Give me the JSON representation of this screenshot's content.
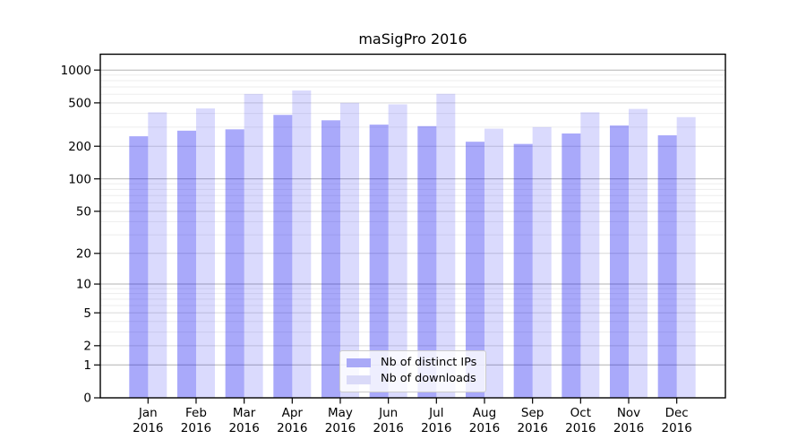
{
  "chart_data": {
    "type": "bar",
    "title": "maSigPro 2016",
    "categories": [
      "Jan",
      "Feb",
      "Mar",
      "Apr",
      "May",
      "Jun",
      "Jul",
      "Aug",
      "Sep",
      "Oct",
      "Nov",
      "Dec"
    ],
    "category_sublabel": "2016",
    "series": [
      {
        "name": "Nb of distinct IPs",
        "values": [
          247,
          278,
          286,
          388,
          346,
          316,
          306,
          220,
          210,
          262,
          310,
          252
        ],
        "color": "#0808f0",
        "alpha": 0.35,
        "swatch": "#a9a9f7"
      },
      {
        "name": "Nb of downloads",
        "values": [
          410,
          445,
          604,
          650,
          500,
          485,
          605,
          290,
          300,
          410,
          440,
          370
        ],
        "color": "#0808f0",
        "alpha": 0.15,
        "swatch": "#dadaf8"
      }
    ],
    "y_axis": {
      "scale": "log10(value+1)",
      "tick_labels": [
        "0",
        "1",
        "2",
        "5",
        "10",
        "20",
        "50",
        "100",
        "200",
        "500",
        "1000"
      ],
      "ticks": [
        0,
        1,
        2,
        5,
        10,
        20,
        50,
        100,
        200,
        500,
        1000
      ],
      "major_gridlines": [
        1,
        10,
        100,
        1000
      ],
      "mid_gridlines": [
        2,
        5,
        20,
        50,
        200,
        500
      ],
      "minor_gridlines": [
        3,
        4,
        6,
        7,
        8,
        9,
        30,
        40,
        60,
        70,
        80,
        90,
        300,
        400,
        600,
        700,
        800,
        900
      ],
      "range_top": 1000
    },
    "x_axis": {
      "tick_labels_line1": [
        "Jan",
        "Feb",
        "Mar",
        "Apr",
        "May",
        "Jun",
        "Jul",
        "Aug",
        "Sep",
        "Oct",
        "Nov",
        "Dec"
      ],
      "tick_labels_line2": "2016"
    },
    "legend_position": "bottom-center",
    "grid": true
  },
  "colors": {
    "grid_major": "#b3b3b3",
    "grid_mid": "#d9d9d9",
    "grid_minor": "#ededed",
    "axis_frame": "#000000",
    "tick_label": "#000000",
    "legend_border": "#cccccc"
  }
}
